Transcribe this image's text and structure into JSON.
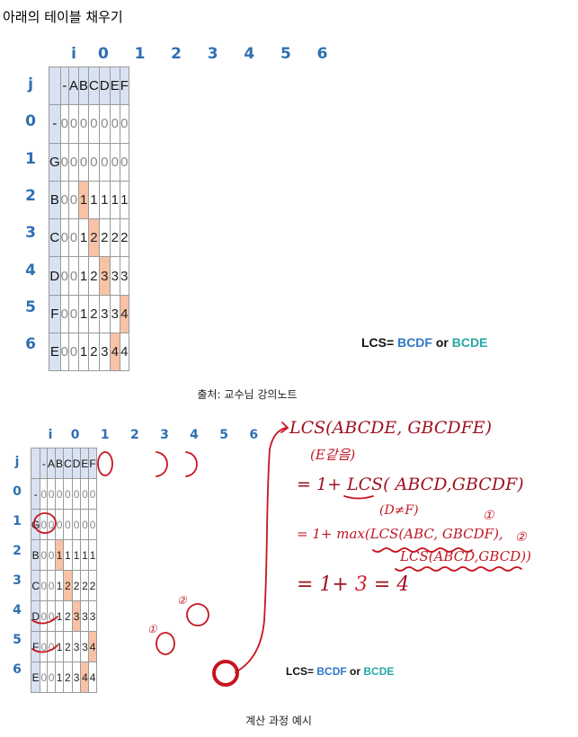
{
  "heading": "아래의 테이블 채우기",
  "caption1": "출처: 교수님 강의노트",
  "caption2": "계산 과정 예시",
  "table": {
    "i_label": "i",
    "j_label": "j",
    "col_index": [
      "0",
      "1",
      "2",
      "3",
      "4",
      "5",
      "6"
    ],
    "row_index": [
      "0",
      "1",
      "2",
      "3",
      "4",
      "5",
      "6"
    ],
    "col_header": [
      "-",
      "A",
      "B",
      "C",
      "D",
      "E",
      "F"
    ],
    "row_header": [
      "-",
      "G",
      "B",
      "C",
      "D",
      "F",
      "E"
    ],
    "values": [
      [
        "0",
        "0",
        "0",
        "0",
        "0",
        "0",
        "0"
      ],
      [
        "0",
        "0",
        "0",
        "0",
        "0",
        "0",
        "0"
      ],
      [
        "0",
        "0",
        "1",
        "1",
        "1",
        "1",
        "1"
      ],
      [
        "0",
        "0",
        "1",
        "2",
        "2",
        "2",
        "2"
      ],
      [
        "0",
        "0",
        "1",
        "2",
        "3",
        "3",
        "3"
      ],
      [
        "0",
        "0",
        "1",
        "2",
        "3",
        "3",
        "4"
      ],
      [
        "0",
        "0",
        "1",
        "2",
        "3",
        "4",
        "4"
      ]
    ],
    "highlight": [
      [
        2,
        2
      ],
      [
        3,
        3
      ],
      [
        4,
        4
      ],
      [
        5,
        6
      ],
      [
        6,
        5
      ]
    ]
  },
  "lcs_result": {
    "prefix": "LCS=",
    "answer1": "BCDF",
    "or": "or",
    "answer2": "BCDE"
  },
  "notes": {
    "line1": "LCS(ABCDE, GBCDFE)",
    "line1b": "(E같음)",
    "line2": "= 1+ LCS( ABCD,GBCDF)",
    "line2b": "(D≠F)",
    "line3": "= 1+ max(LCS(ABC, GBCDF),",
    "line3b": "LCS(ABCD,GBCD))",
    "mark1": "①",
    "mark2": "②",
    "line4a": "= 1+",
    "line4b": "3",
    "line4c": "= 4"
  }
}
